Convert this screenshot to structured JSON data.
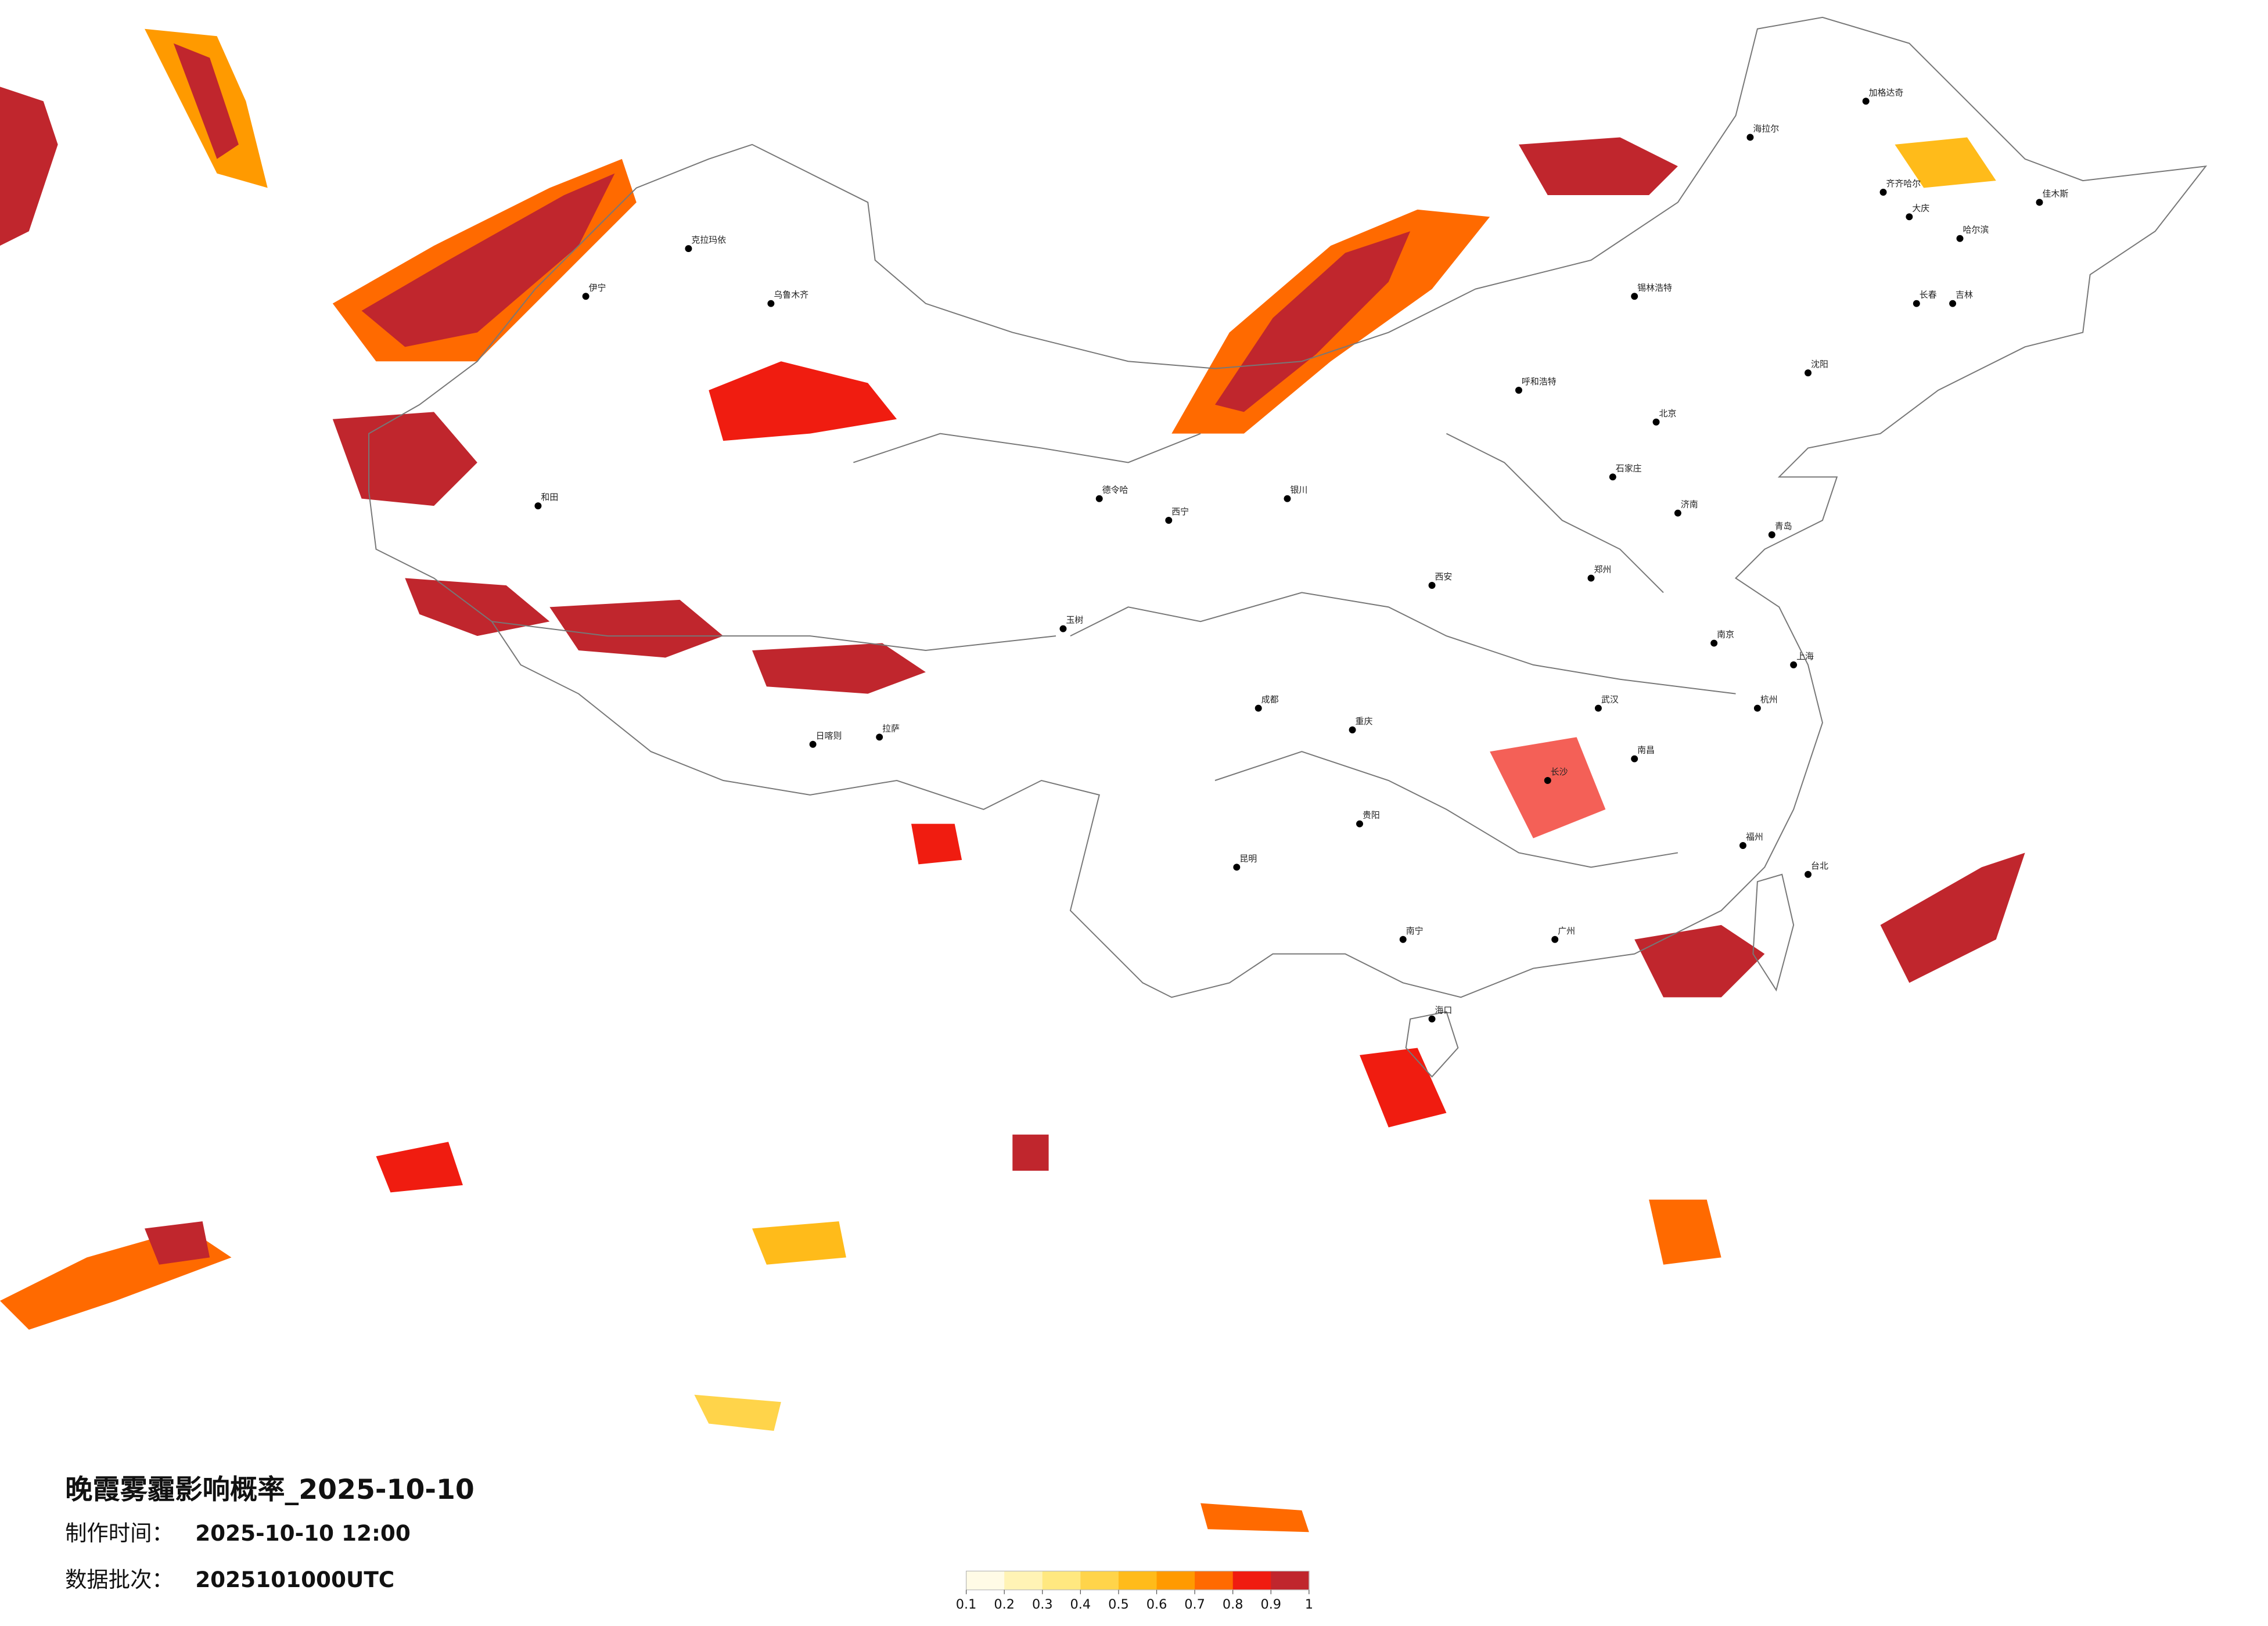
{
  "header": {
    "title": "晚霞雾霾影响概率_2025-10-10",
    "made_label": "制作时间：",
    "made_time": "2025-10-10 12:00",
    "batch_label": "数据批次：",
    "batch": "2025101000UTC"
  },
  "legend": {
    "colors": [
      "#fffbe6",
      "#fff3b5",
      "#ffe880",
      "#ffd44a",
      "#ffbb1a",
      "#ff9a00",
      "#ff6a00",
      "#f01c10",
      "#c0262d"
    ],
    "ticks": [
      0.1,
      0.2,
      0.3,
      0.4,
      0.5,
      0.6,
      0.7,
      0.8,
      0.9,
      1
    ]
  },
  "cities": [
    "北京",
    "石家庄",
    "呼和浩特",
    "沈阳",
    "长春",
    "吉林",
    "哈尔滨",
    "齐齐哈尔",
    "大庆",
    "佳木斯",
    "海拉尔",
    "加格达奇",
    "郑州",
    "武汉",
    "长沙",
    "南昌",
    "福州",
    "广州",
    "南宁",
    "昆明",
    "贵阳",
    "重庆",
    "成都",
    "西安",
    "银川",
    "济南",
    "青岛",
    "上海",
    "南京",
    "杭州",
    "台北",
    "海口",
    "拉萨",
    "日喀则",
    "和田",
    "克拉玛依",
    "乌鲁木齐",
    "伊宁",
    "玉树",
    "德令哈",
    "锡林浩特",
    "西宁"
  ]
}
